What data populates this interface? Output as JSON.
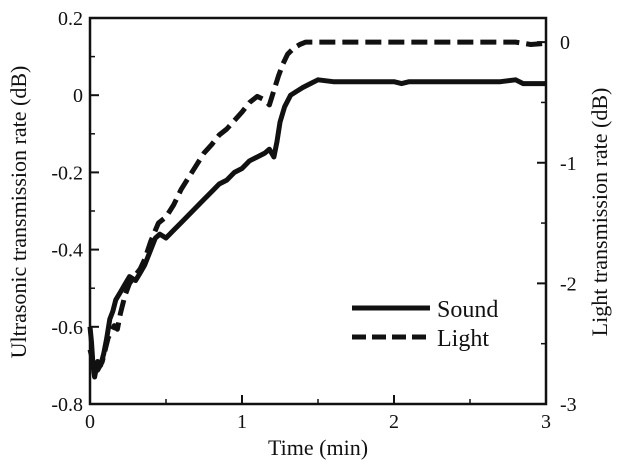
{
  "chart_data": {
    "type": "line",
    "xlabel": "Time (min)",
    "ylabel_left": "Ultrasonic transmission rate (dB)",
    "ylabel_right": "Light transmission rate (dB)",
    "xlim": [
      0,
      3
    ],
    "ylim_left": [
      -0.8,
      0.2
    ],
    "ylim_right": [
      -3,
      0.2
    ],
    "x_ticks": [
      {
        "value": 0,
        "label": "0"
      },
      {
        "value": 1,
        "label": "1"
      },
      {
        "value": 2,
        "label": "2"
      },
      {
        "value": 3,
        "label": "3"
      }
    ],
    "y_left_ticks": [
      {
        "value": 0.2,
        "label": "0.2"
      },
      {
        "value": 0,
        "label": "0"
      },
      {
        "value": -0.2,
        "label": "-0.2"
      },
      {
        "value": -0.4,
        "label": "-0.4"
      },
      {
        "value": -0.6,
        "label": "-0.6"
      },
      {
        "value": -0.8,
        "label": "-0.8"
      }
    ],
    "y_right_ticks": [
      {
        "value": 0,
        "label": "0"
      },
      {
        "value": -1,
        "label": "-1"
      },
      {
        "value": -2,
        "label": "-2"
      },
      {
        "value": -3,
        "label": "-3"
      }
    ],
    "grid": false,
    "legend_position": "lower-right",
    "series": [
      {
        "name": "Sound",
        "axis": "left",
        "style": "solid",
        "color": "#111111",
        "points": [
          [
            0.0,
            -0.6
          ],
          [
            0.01,
            -0.64
          ],
          [
            0.02,
            -0.7
          ],
          [
            0.03,
            -0.73
          ],
          [
            0.04,
            -0.71
          ],
          [
            0.05,
            -0.69
          ],
          [
            0.07,
            -0.7
          ],
          [
            0.09,
            -0.67
          ],
          [
            0.11,
            -0.63
          ],
          [
            0.13,
            -0.58
          ],
          [
            0.15,
            -0.56
          ],
          [
            0.17,
            -0.53
          ],
          [
            0.2,
            -0.51
          ],
          [
            0.23,
            -0.49
          ],
          [
            0.26,
            -0.47
          ],
          [
            0.3,
            -0.48
          ],
          [
            0.33,
            -0.46
          ],
          [
            0.36,
            -0.44
          ],
          [
            0.4,
            -0.4
          ],
          [
            0.43,
            -0.37
          ],
          [
            0.46,
            -0.36
          ],
          [
            0.5,
            -0.37
          ],
          [
            0.55,
            -0.35
          ],
          [
            0.6,
            -0.33
          ],
          [
            0.65,
            -0.31
          ],
          [
            0.7,
            -0.29
          ],
          [
            0.75,
            -0.27
          ],
          [
            0.8,
            -0.25
          ],
          [
            0.85,
            -0.23
          ],
          [
            0.9,
            -0.22
          ],
          [
            0.95,
            -0.2
          ],
          [
            1.0,
            -0.19
          ],
          [
            1.05,
            -0.17
          ],
          [
            1.1,
            -0.16
          ],
          [
            1.15,
            -0.15
          ],
          [
            1.18,
            -0.14
          ],
          [
            1.21,
            -0.16
          ],
          [
            1.23,
            -0.12
          ],
          [
            1.25,
            -0.07
          ],
          [
            1.28,
            -0.03
          ],
          [
            1.32,
            0.0
          ],
          [
            1.36,
            0.01
          ],
          [
            1.4,
            0.02
          ],
          [
            1.45,
            0.03
          ],
          [
            1.5,
            0.04
          ],
          [
            1.6,
            0.035
          ],
          [
            1.8,
            0.035
          ],
          [
            2.0,
            0.035
          ],
          [
            2.05,
            0.03
          ],
          [
            2.1,
            0.035
          ],
          [
            2.4,
            0.035
          ],
          [
            2.7,
            0.035
          ],
          [
            2.8,
            0.04
          ],
          [
            2.85,
            0.03
          ],
          [
            2.9,
            0.03
          ],
          [
            3.0,
            0.03
          ]
        ]
      },
      {
        "name": "Light",
        "axis": "right",
        "style": "dashed",
        "color": "#111111",
        "points": [
          [
            0.0,
            -2.55
          ],
          [
            0.01,
            -2.6
          ],
          [
            0.02,
            -2.68
          ],
          [
            0.03,
            -2.73
          ],
          [
            0.05,
            -2.72
          ],
          [
            0.08,
            -2.65
          ],
          [
            0.1,
            -2.55
          ],
          [
            0.12,
            -2.45
          ],
          [
            0.14,
            -2.4
          ],
          [
            0.16,
            -2.35
          ],
          [
            0.18,
            -2.38
          ],
          [
            0.2,
            -2.25
          ],
          [
            0.23,
            -2.1
          ],
          [
            0.26,
            -2.0
          ],
          [
            0.3,
            -1.93
          ],
          [
            0.33,
            -1.88
          ],
          [
            0.36,
            -1.8
          ],
          [
            0.4,
            -1.65
          ],
          [
            0.45,
            -1.5
          ],
          [
            0.5,
            -1.45
          ],
          [
            0.55,
            -1.35
          ],
          [
            0.6,
            -1.22
          ],
          [
            0.65,
            -1.12
          ],
          [
            0.7,
            -1.02
          ],
          [
            0.75,
            -0.92
          ],
          [
            0.8,
            -0.85
          ],
          [
            0.85,
            -0.77
          ],
          [
            0.9,
            -0.72
          ],
          [
            0.95,
            -0.65
          ],
          [
            1.0,
            -0.58
          ],
          [
            1.05,
            -0.5
          ],
          [
            1.1,
            -0.45
          ],
          [
            1.15,
            -0.48
          ],
          [
            1.18,
            -0.52
          ],
          [
            1.21,
            -0.4
          ],
          [
            1.24,
            -0.28
          ],
          [
            1.27,
            -0.18
          ],
          [
            1.3,
            -0.1
          ],
          [
            1.34,
            -0.05
          ],
          [
            1.38,
            -0.02
          ],
          [
            1.42,
            0.0
          ],
          [
            1.6,
            0.0
          ],
          [
            2.0,
            0.0
          ],
          [
            2.5,
            0.0
          ],
          [
            2.8,
            0.0
          ],
          [
            2.9,
            -0.02
          ],
          [
            3.0,
            -0.01
          ]
        ]
      }
    ]
  },
  "legend": {
    "items": [
      {
        "label": "Sound",
        "style": "solid"
      },
      {
        "label": "Light",
        "style": "dashed"
      }
    ]
  }
}
